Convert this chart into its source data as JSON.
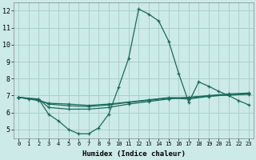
{
  "xlabel": "Humidex (Indice chaleur)",
  "background_color": "#cceae7",
  "line_color": "#1a6b5a",
  "grid_color": "#aacfcc",
  "xlim": [
    -0.5,
    23.5
  ],
  "ylim": [
    4.5,
    12.5
  ],
  "yticks": [
    5,
    6,
    7,
    8,
    9,
    10,
    11,
    12
  ],
  "xticks": [
    0,
    1,
    2,
    3,
    4,
    5,
    6,
    7,
    8,
    9,
    10,
    11,
    12,
    13,
    14,
    15,
    16,
    17,
    18,
    19,
    20,
    21,
    22,
    23
  ],
  "lines": [
    {
      "x": [
        0,
        1,
        2,
        3,
        4,
        5,
        6,
        7,
        8,
        9,
        10,
        11,
        12,
        13,
        14,
        15,
        16,
        17,
        18,
        19,
        20,
        21,
        22,
        23
      ],
      "y": [
        6.9,
        6.8,
        6.8,
        5.9,
        5.5,
        5.0,
        4.75,
        4.75,
        5.1,
        5.9,
        7.5,
        9.2,
        12.1,
        11.8,
        11.4,
        10.2,
        8.3,
        6.6,
        7.8,
        7.55,
        7.25,
        7.0,
        6.7,
        6.45
      ]
    },
    {
      "x": [
        0,
        2,
        3,
        5,
        7,
        9,
        11,
        13,
        15,
        17,
        19,
        21,
        23
      ],
      "y": [
        6.9,
        6.8,
        6.3,
        6.2,
        6.2,
        6.3,
        6.5,
        6.65,
        6.8,
        6.9,
        7.0,
        7.1,
        7.15
      ]
    },
    {
      "x": [
        0,
        2,
        3,
        5,
        7,
        9,
        11,
        13,
        15,
        17,
        19,
        21,
        23
      ],
      "y": [
        6.9,
        6.75,
        6.5,
        6.4,
        6.35,
        6.45,
        6.6,
        6.72,
        6.85,
        6.8,
        6.95,
        7.05,
        7.1
      ]
    },
    {
      "x": [
        0,
        2,
        3,
        5,
        7,
        9,
        11,
        13,
        15,
        17,
        19,
        21,
        23
      ],
      "y": [
        6.9,
        6.7,
        6.55,
        6.5,
        6.42,
        6.5,
        6.62,
        6.75,
        6.88,
        6.87,
        6.98,
        7.02,
        7.08
      ]
    }
  ]
}
